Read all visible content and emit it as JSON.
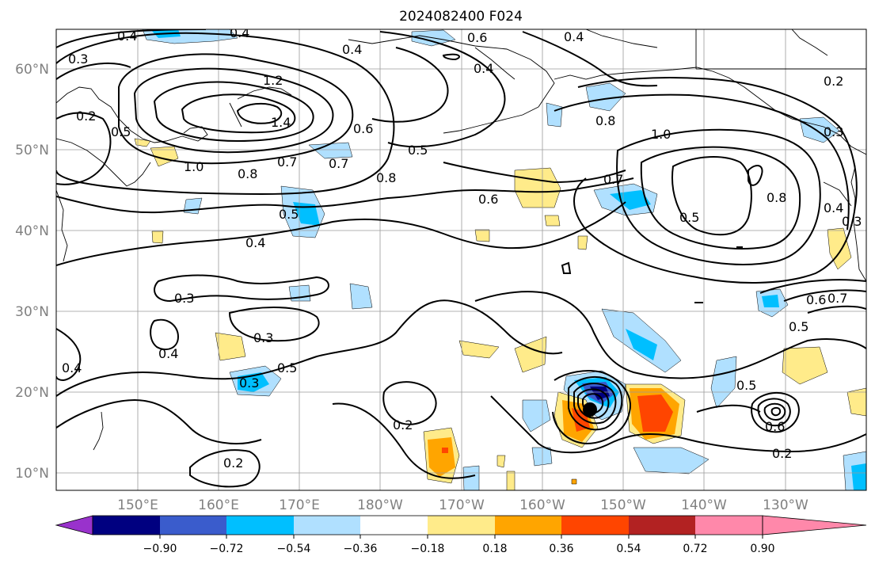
{
  "title": "2024082400 F024",
  "map": {
    "lat_labels": [
      "60°N",
      "50°N",
      "40°N",
      "30°N",
      "20°N",
      "10°N"
    ],
    "lon_labels": [
      "150°E",
      "160°E",
      "170°E",
      "180°W",
      "170°W",
      "160°W",
      "150°W",
      "140°W",
      "130°W"
    ],
    "contour_labels": [
      "0.4",
      "0.4",
      "0.3",
      "0.4",
      "0.6",
      "0.4",
      "0.4",
      "0.2",
      "1.2",
      "1.4",
      "0.5",
      "0.2",
      "0.6",
      "0.5",
      "0.8",
      "1.0",
      "0.3",
      "1.0",
      "0.8",
      "0.7",
      "0.7",
      "0.8",
      "0.7",
      "0.6",
      "0.8",
      "0.5",
      "0.5",
      "0.4",
      "0.4",
      "0.3",
      "0.3",
      "0.6",
      "0.7",
      "0.5",
      "0.4",
      "0.4",
      "0.3",
      "0.3",
      "0.5",
      "0.2",
      "0.5",
      "0.6",
      "0.2",
      "0.2"
    ],
    "storm_marker": "tropical-cyclone-center"
  },
  "colorbar": {
    "tick_labels": [
      "−0.90",
      "−0.72",
      "−0.54",
      "−0.36",
      "−0.18",
      "0.18",
      "0.36",
      "0.54",
      "0.72",
      "0.90"
    ],
    "colors": [
      "#9932cc",
      "#000080",
      "#3a5ccc",
      "#00bfff",
      "#b0e0ff",
      "#ffffff",
      "#ffeb8a",
      "#ffa500",
      "#ff4500",
      "#b22222",
      "#ff88aa"
    ]
  }
}
